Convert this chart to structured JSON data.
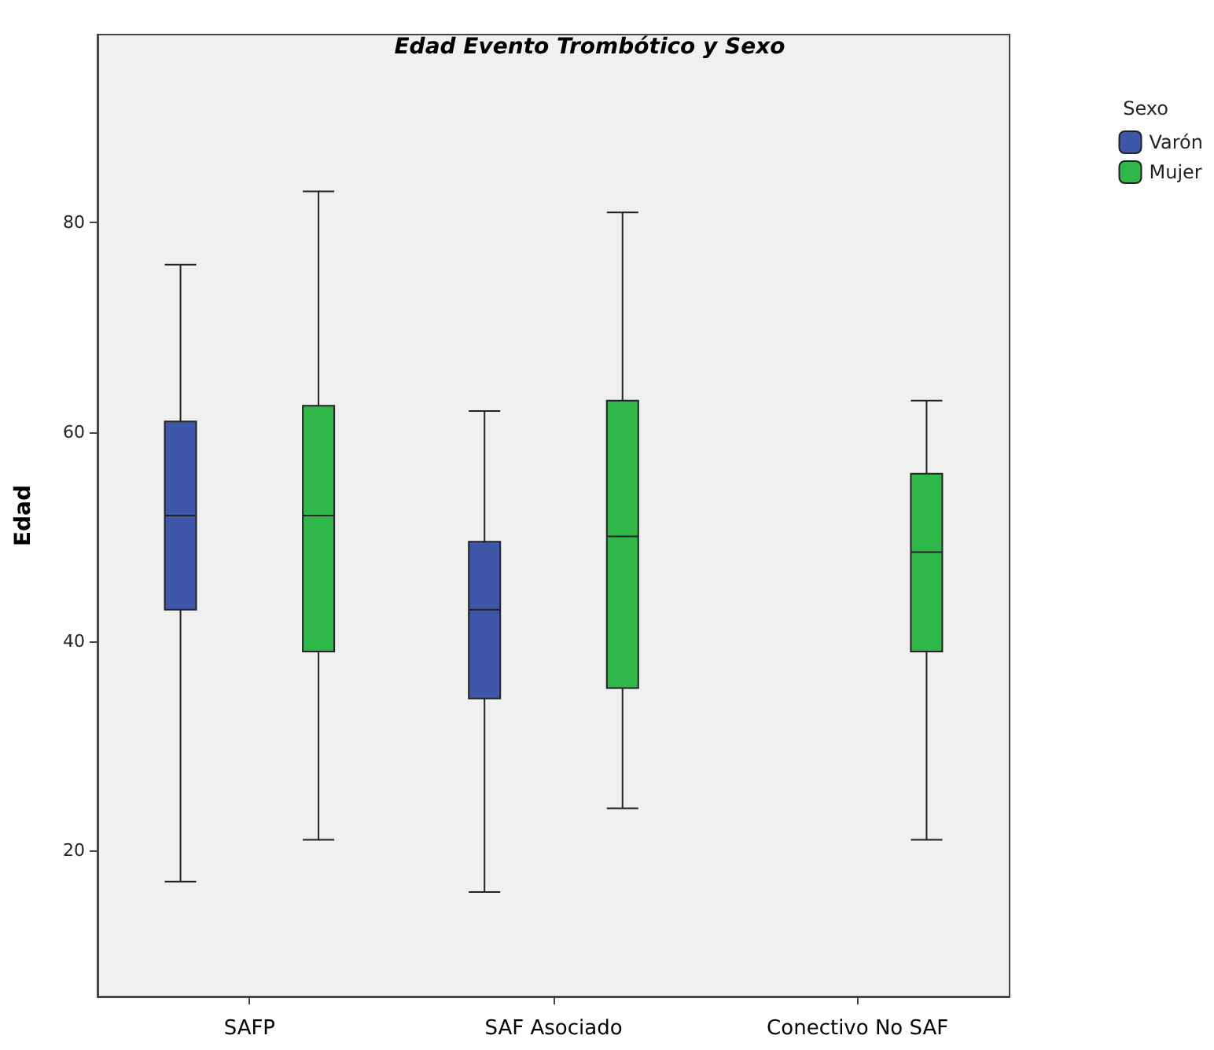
{
  "chart_data": {
    "type": "box",
    "title": "Edad Evento Trombótico y Sexo",
    "ylabel": "Edad",
    "legend_title": "Sexo",
    "legend": "top right",
    "grid": false,
    "categories": [
      "SAFP",
      "SAF Asociado",
      "Conectivo No SAF"
    ],
    "ylim": [
      6,
      98
    ],
    "yticks": [
      20,
      40,
      60,
      80
    ],
    "series": [
      {
        "name": "Varón",
        "color": "#3f57a8",
        "boxes": [
          {
            "low": 17,
            "q1": 43,
            "median": 52,
            "q3": 61,
            "high": 76
          },
          {
            "low": 16,
            "q1": 34.5,
            "median": 43,
            "q3": 49.5,
            "high": 62
          },
          null
        ]
      },
      {
        "name": "Mujer",
        "color": "#2fb74a",
        "boxes": [
          {
            "low": 21,
            "q1": 39,
            "median": 52,
            "q3": 62.5,
            "high": 83
          },
          {
            "low": 24,
            "q1": 35.5,
            "median": 50,
            "q3": 63,
            "high": 81
          },
          {
            "low": 21,
            "q1": 39,
            "median": 48.5,
            "q3": 56,
            "high": 63
          }
        ]
      }
    ]
  }
}
